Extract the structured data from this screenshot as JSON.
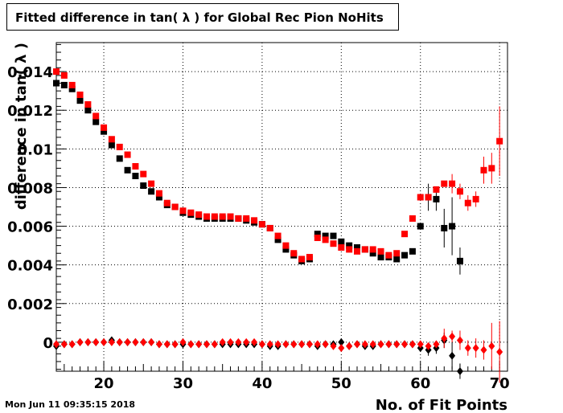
{
  "title": "Fitted difference in tan( λ ) for Global Rec Pion NoHits",
  "timestamp": "Mon Jun 11 09:35:15 2018",
  "colors": {
    "series_black": "#000000",
    "series_red": "#ff0000",
    "grid": "#000000"
  },
  "chart_data": {
    "type": "scatter",
    "title": "Fitted difference in tan( λ ) for Global Rec Pion NoHits",
    "xlabel": "No. of Fit Points",
    "ylabel": "difference in tan( λ )",
    "xlim": [
      14,
      71
    ],
    "ylim": [
      -0.0015,
      0.0155
    ],
    "xticks": [
      20,
      30,
      40,
      50,
      60,
      70
    ],
    "yticks": [
      0,
      0.002,
      0.004,
      0.006,
      0.008,
      0.01,
      0.012,
      0.014
    ],
    "ytick_labels": [
      "0",
      "0.002",
      "0.004",
      "0.006",
      "0.008",
      "0.01",
      "0.012",
      "0.014"
    ],
    "grid": true,
    "series": [
      {
        "marker": "square",
        "color": "#000000",
        "points": [
          [
            14,
            0.0134
          ],
          [
            15,
            0.0133
          ],
          [
            16,
            0.0131
          ],
          [
            17,
            0.0125
          ],
          [
            18,
            0.012
          ],
          [
            19,
            0.0114
          ],
          [
            20,
            0.0109
          ],
          [
            21,
            0.0102
          ],
          [
            22,
            0.0095
          ],
          [
            23,
            0.0089
          ],
          [
            24,
            0.0086
          ],
          [
            25,
            0.0081
          ],
          [
            26,
            0.0078
          ],
          [
            27,
            0.0075
          ],
          [
            28,
            0.0071
          ],
          [
            29,
            0.007
          ],
          [
            30,
            0.0067
          ],
          [
            31,
            0.0066
          ],
          [
            32,
            0.0065
          ],
          [
            33,
            0.0064
          ],
          [
            34,
            0.0064
          ],
          [
            35,
            0.0064
          ],
          [
            36,
            0.0064
          ],
          [
            37,
            0.0064
          ],
          [
            38,
            0.0063
          ],
          [
            39,
            0.0062
          ],
          [
            40,
            0.0061
          ],
          [
            41,
            0.0059
          ],
          [
            42,
            0.0053
          ],
          [
            43,
            0.0048
          ],
          [
            44,
            0.0045
          ],
          [
            45,
            0.0042
          ],
          [
            46,
            0.0043
          ],
          [
            47,
            0.0056
          ],
          [
            48,
            0.0055
          ],
          [
            49,
            0.0055
          ],
          [
            50,
            0.0052
          ],
          [
            51,
            0.005
          ],
          [
            52,
            0.0049
          ],
          [
            53,
            0.0048
          ],
          [
            54,
            0.0046
          ],
          [
            55,
            0.0044
          ],
          [
            56,
            0.0044
          ],
          [
            57,
            0.0043
          ],
          [
            58,
            0.0045
          ],
          [
            59,
            0.0047
          ],
          [
            60,
            0.006
          ],
          [
            61,
            0.0075
          ],
          [
            62,
            0.0074
          ],
          [
            63,
            0.0059
          ],
          [
            64,
            0.006
          ],
          [
            65,
            0.0042
          ]
        ],
        "errors": [
          [
            61,
            0.0007
          ],
          [
            62,
            0.0006
          ],
          [
            63,
            0.001
          ],
          [
            64,
            0.0015
          ],
          [
            65,
            0.0007
          ]
        ]
      },
      {
        "marker": "square",
        "color": "#ff0000",
        "points": [
          [
            14,
            0.014
          ],
          [
            15,
            0.0138
          ],
          [
            16,
            0.0133
          ],
          [
            17,
            0.0128
          ],
          [
            18,
            0.0123
          ],
          [
            19,
            0.0117
          ],
          [
            20,
            0.0111
          ],
          [
            21,
            0.0105
          ],
          [
            22,
            0.0101
          ],
          [
            23,
            0.0097
          ],
          [
            24,
            0.0091
          ],
          [
            25,
            0.0087
          ],
          [
            26,
            0.0082
          ],
          [
            27,
            0.0077
          ],
          [
            28,
            0.0072
          ],
          [
            29,
            0.007
          ],
          [
            30,
            0.0068
          ],
          [
            31,
            0.0067
          ],
          [
            32,
            0.0066
          ],
          [
            33,
            0.0065
          ],
          [
            34,
            0.0065
          ],
          [
            35,
            0.0065
          ],
          [
            36,
            0.0065
          ],
          [
            37,
            0.0064
          ],
          [
            38,
            0.0064
          ],
          [
            39,
            0.0063
          ],
          [
            40,
            0.0061
          ],
          [
            41,
            0.0059
          ],
          [
            42,
            0.0055
          ],
          [
            43,
            0.005
          ],
          [
            44,
            0.0046
          ],
          [
            45,
            0.0043
          ],
          [
            46,
            0.0044
          ],
          [
            47,
            0.0054
          ],
          [
            48,
            0.0053
          ],
          [
            49,
            0.0051
          ],
          [
            50,
            0.0049
          ],
          [
            51,
            0.0048
          ],
          [
            52,
            0.0047
          ],
          [
            53,
            0.0048
          ],
          [
            54,
            0.0048
          ],
          [
            55,
            0.0047
          ],
          [
            56,
            0.0045
          ],
          [
            57,
            0.0046
          ],
          [
            58,
            0.0056
          ],
          [
            59,
            0.0064
          ],
          [
            60,
            0.0075
          ],
          [
            61,
            0.0075
          ],
          [
            62,
            0.0079
          ],
          [
            63,
            0.0082
          ],
          [
            64,
            0.0082
          ],
          [
            65,
            0.0078
          ],
          [
            66,
            0.0072
          ],
          [
            67,
            0.0074
          ],
          [
            68,
            0.0089
          ],
          [
            69,
            0.009
          ],
          [
            70,
            0.0104
          ]
        ],
        "errors": [
          [
            64,
            0.0005
          ],
          [
            65,
            0.0004
          ],
          [
            66,
            0.0004
          ],
          [
            67,
            0.0004
          ],
          [
            68,
            0.0007
          ],
          [
            69,
            0.0008
          ],
          [
            70,
            0.0018
          ]
        ]
      },
      {
        "marker": "diamond",
        "color": "#000000",
        "points": [
          [
            14,
            -0.0002
          ],
          [
            15,
            -0.0001
          ],
          [
            16,
            -0.0001
          ],
          [
            17,
            0.0
          ],
          [
            18,
            0.0
          ],
          [
            19,
            0.0
          ],
          [
            20,
            0.0
          ],
          [
            21,
            0.0001
          ],
          [
            22,
            0.0
          ],
          [
            23,
            0.0
          ],
          [
            24,
            0.0
          ],
          [
            25,
            0.0
          ],
          [
            26,
            0.0
          ],
          [
            27,
            -0.0001
          ],
          [
            28,
            -0.0001
          ],
          [
            29,
            -0.0001
          ],
          [
            30,
            -0.0001
          ],
          [
            31,
            -0.0001
          ],
          [
            32,
            -0.0001
          ],
          [
            33,
            -0.0001
          ],
          [
            34,
            -0.0001
          ],
          [
            35,
            -0.0001
          ],
          [
            36,
            -0.0001
          ],
          [
            37,
            -0.0001
          ],
          [
            38,
            -0.0001
          ],
          [
            39,
            -0.0001
          ],
          [
            40,
            -0.0001
          ],
          [
            41,
            -0.0002
          ],
          [
            42,
            -0.0002
          ],
          [
            43,
            -0.0001
          ],
          [
            44,
            -0.0001
          ],
          [
            45,
            -0.0001
          ],
          [
            46,
            -0.0001
          ],
          [
            47,
            -0.0002
          ],
          [
            48,
            -0.0001
          ],
          [
            49,
            -0.0001
          ],
          [
            50,
            0.0
          ],
          [
            51,
            -0.0002
          ],
          [
            52,
            -0.0001
          ],
          [
            53,
            -0.0002
          ],
          [
            54,
            -0.0002
          ],
          [
            55,
            -0.0001
          ],
          [
            56,
            -0.0001
          ],
          [
            57,
            -0.0001
          ],
          [
            58,
            -0.0001
          ],
          [
            59,
            -0.0001
          ],
          [
            60,
            -0.0003
          ],
          [
            61,
            -0.0004
          ],
          [
            62,
            -0.0003
          ],
          [
            63,
            0.0001
          ],
          [
            64,
            -0.0007
          ],
          [
            65,
            -0.0015
          ]
        ],
        "errors": [
          [
            61,
            0.0003
          ],
          [
            62,
            0.0003
          ],
          [
            63,
            0.0004
          ],
          [
            64,
            0.0007
          ],
          [
            65,
            0.0004
          ]
        ]
      },
      {
        "marker": "diamond",
        "color": "#ff0000",
        "points": [
          [
            14,
            -0.0001
          ],
          [
            15,
            -0.0001
          ],
          [
            16,
            -0.0001
          ],
          [
            17,
            0.0
          ],
          [
            18,
            0.0
          ],
          [
            19,
            0.0
          ],
          [
            20,
            0.0
          ],
          [
            21,
            0.0
          ],
          [
            22,
            0.0
          ],
          [
            23,
            0.0
          ],
          [
            24,
            0.0
          ],
          [
            25,
            0.0
          ],
          [
            26,
            0.0
          ],
          [
            27,
            -0.0001
          ],
          [
            28,
            -0.0001
          ],
          [
            29,
            -0.0001
          ],
          [
            30,
            0.0
          ],
          [
            31,
            -0.0001
          ],
          [
            32,
            -0.0001
          ],
          [
            33,
            -0.0001
          ],
          [
            34,
            -0.0001
          ],
          [
            35,
            0.0
          ],
          [
            36,
            0.0
          ],
          [
            37,
            0.0
          ],
          [
            38,
            0.0
          ],
          [
            39,
            0.0
          ],
          [
            40,
            -0.0001
          ],
          [
            41,
            -0.0001
          ],
          [
            42,
            -0.0001
          ],
          [
            43,
            -0.0001
          ],
          [
            44,
            -0.0001
          ],
          [
            45,
            -0.0001
          ],
          [
            46,
            -0.0001
          ],
          [
            47,
            -0.0001
          ],
          [
            48,
            -0.0001
          ],
          [
            49,
            -0.0002
          ],
          [
            50,
            -0.0003
          ],
          [
            51,
            -0.0002
          ],
          [
            52,
            -0.0001
          ],
          [
            53,
            -0.0001
          ],
          [
            54,
            -0.0001
          ],
          [
            55,
            -0.0001
          ],
          [
            56,
            -0.0001
          ],
          [
            57,
            -0.0001
          ],
          [
            58,
            -0.0001
          ],
          [
            59,
            -0.0001
          ],
          [
            60,
            -0.0001
          ],
          [
            61,
            -0.0002
          ],
          [
            62,
            -0.0001
          ],
          [
            63,
            0.0002
          ],
          [
            64,
            0.0003
          ],
          [
            65,
            0.0001
          ],
          [
            66,
            -0.0003
          ],
          [
            67,
            -0.0003
          ],
          [
            68,
            -0.0004
          ],
          [
            69,
            -0.0002
          ],
          [
            70,
            -0.0005
          ]
        ],
        "errors": [
          [
            63,
            0.0005
          ],
          [
            64,
            0.0003
          ],
          [
            65,
            0.0005
          ],
          [
            66,
            0.0004
          ],
          [
            67,
            0.0005
          ],
          [
            68,
            0.0005
          ],
          [
            69,
            0.0012
          ],
          [
            70,
            0.0016
          ]
        ]
      }
    ]
  }
}
